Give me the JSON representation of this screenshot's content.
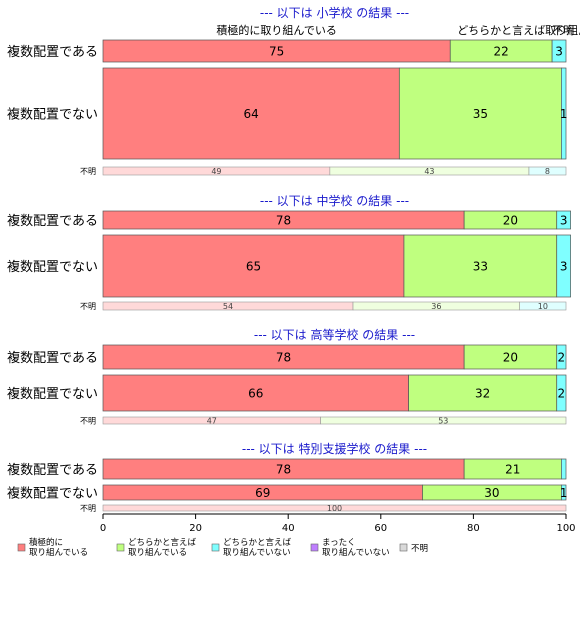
{
  "chart_data": {
    "type": "bar",
    "orientation": "horizontal-stacked",
    "xlim": [
      0,
      100
    ],
    "xticks": [
      0,
      20,
      40,
      60,
      80,
      100
    ],
    "category_labels": [
      "積極的に取り組んでいる",
      "どちらかと言えば取り組んでいる",
      "不明"
    ],
    "legend": [
      {
        "key": "積極的に\n取り組んでいる",
        "color": "#ff7f7f"
      },
      {
        "key": "どちらかと言えば\n取り組んでいる",
        "color": "#bfff7f"
      },
      {
        "key": "どちらかと言えば\n取り組んでいない",
        "color": "#7fffff"
      },
      {
        "key": "まったく\n取り組んでいない",
        "color": "#bf7fff"
      },
      {
        "key": "不明",
        "color": "#d9d9d9"
      }
    ],
    "panels": [
      {
        "title": "--- 以下は 小学校 の結果 ---",
        "rows": [
          {
            "label": "複数配置である",
            "values": [
              75,
              22,
              3,
              0,
              0
            ],
            "labels": [
              "75",
              "22",
              "3",
              "",
              ""
            ]
          },
          {
            "label": "複数配置でない",
            "values": [
              64,
              35,
              1,
              0,
              0
            ],
            "labels": [
              "64",
              "35",
              "1",
              "",
              ""
            ]
          },
          {
            "label": "不明",
            "values": [
              49,
              43,
              8,
              0,
              0
            ],
            "labels": [
              "49",
              "43",
              "8",
              "",
              ""
            ]
          }
        ]
      },
      {
        "title": "--- 以下は 中学校 の結果 ---",
        "rows": [
          {
            "label": "複数配置である",
            "values": [
              78,
              20,
              3,
              0,
              0
            ],
            "labels": [
              "78",
              "20",
              "3",
              "",
              ""
            ]
          },
          {
            "label": "複数配置でない",
            "values": [
              65,
              33,
              3,
              0,
              0
            ],
            "labels": [
              "65",
              "33",
              "3",
              "",
              ""
            ]
          },
          {
            "label": "不明",
            "values": [
              54,
              36,
              10,
              0,
              0
            ],
            "labels": [
              "54",
              "36",
              "10",
              "",
              ""
            ]
          }
        ]
      },
      {
        "title": "--- 以下は 高等学校 の結果 ---",
        "rows": [
          {
            "label": "複数配置である",
            "values": [
              78,
              20,
              2,
              0,
              0
            ],
            "labels": [
              "78",
              "20",
              "2",
              "",
              ""
            ]
          },
          {
            "label": "複数配置でない",
            "values": [
              66,
              32,
              2,
              0,
              0
            ],
            "labels": [
              "66",
              "32",
              "2",
              "",
              ""
            ]
          },
          {
            "label": "不明",
            "values": [
              47,
              53,
              0,
              0,
              0
            ],
            "labels": [
              "47",
              "53",
              "",
              "",
              ""
            ]
          }
        ]
      },
      {
        "title": "--- 以下は 特別支援学校 の結果 ---",
        "rows": [
          {
            "label": "複数配置である",
            "values": [
              78,
              21,
              1,
              0,
              0
            ],
            "labels": [
              "78",
              "21",
              "",
              "",
              ""
            ]
          },
          {
            "label": "複数配置でない",
            "values": [
              69,
              30,
              1,
              0,
              0
            ],
            "labels": [
              "69",
              "30",
              "1",
              "",
              ""
            ]
          },
          {
            "label": "不明",
            "values": [
              100,
              0,
              0,
              0,
              0
            ],
            "labels": [
              "100",
              "",
              "",
              "",
              ""
            ]
          }
        ]
      }
    ]
  }
}
